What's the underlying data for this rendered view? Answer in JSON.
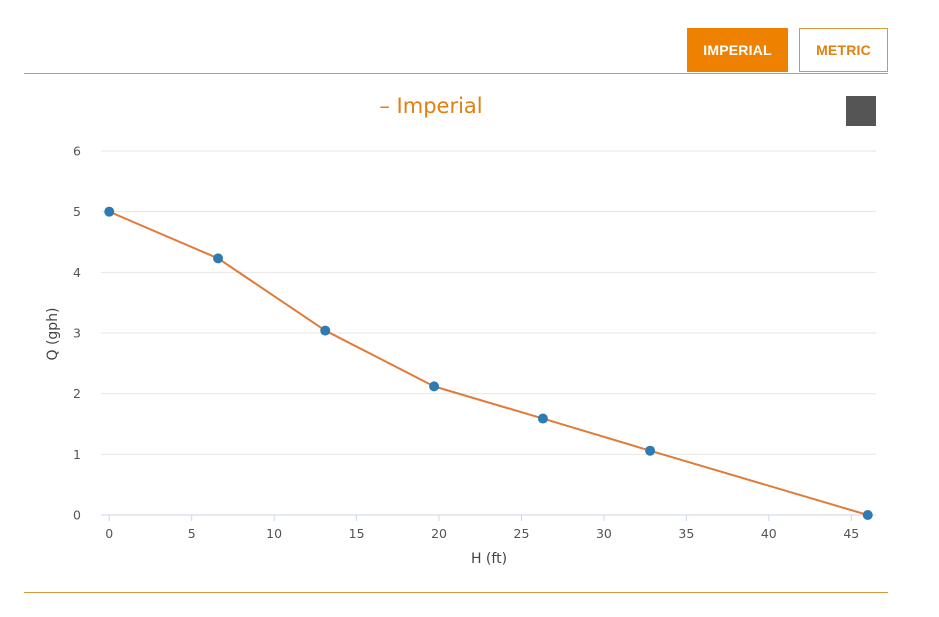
{
  "units": {
    "imperial_label": "IMPERIAL",
    "metric_label": "METRIC",
    "active": "imperial"
  },
  "colors": {
    "accent": "#ee8200",
    "title": "#e07f12",
    "line": "#e07b39",
    "marker": "#2e7bb4",
    "grid": "#e6e6e6",
    "axis": "#ccd6eb"
  },
  "menu_icon": "hamburger-menu-icon",
  "chart_data": {
    "type": "line",
    "title": "– Imperial",
    "xlabel": "H (ft)",
    "ylabel": "Q (gph)",
    "xlim": [
      -0.5,
      46.5
    ],
    "ylim": [
      0,
      6
    ],
    "xticks": [
      0,
      5,
      10,
      15,
      20,
      25,
      30,
      35,
      40,
      45
    ],
    "yticks": [
      0,
      1,
      2,
      3,
      4,
      5,
      6
    ],
    "grid": true,
    "legend": "none",
    "series": [
      {
        "x": [
          0,
          6.6,
          13.1,
          19.7,
          26.3,
          32.8,
          46
        ],
        "y": [
          5,
          4.23,
          3.04,
          2.12,
          1.59,
          1.06,
          0
        ]
      }
    ]
  }
}
